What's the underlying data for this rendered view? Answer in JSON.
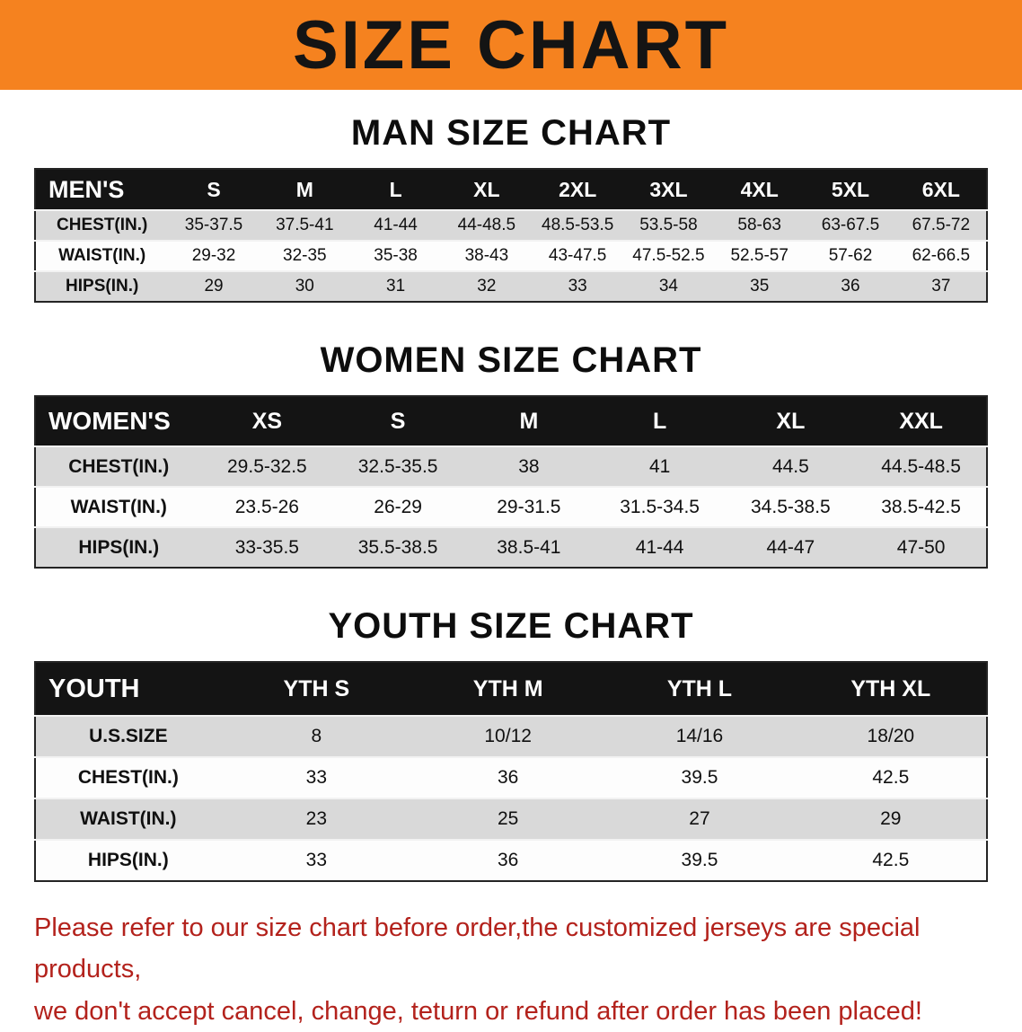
{
  "banner": {
    "title": "SIZE CHART"
  },
  "colors": {
    "banner_bg": "#f5821f",
    "table_header_bg": "#141414",
    "row_gray": "#d9d9d9",
    "row_white": "#fdfdfd",
    "footer_red": "#b3221c"
  },
  "sections": [
    {
      "title": "MAN SIZE CHART",
      "table": {
        "name": "mens-size-table",
        "header_label": "MEN'S",
        "columns": [
          "S",
          "M",
          "L",
          "XL",
          "2XL",
          "3XL",
          "4XL",
          "5XL",
          "6XL"
        ],
        "rows": [
          {
            "label": "CHEST(IN.)",
            "values": [
              "35-37.5",
              "37.5-41",
              "41-44",
              "44-48.5",
              "48.5-53.5",
              "53.5-58",
              "58-63",
              "63-67.5",
              "67.5-72"
            ]
          },
          {
            "label": "WAIST(IN.)",
            "values": [
              "29-32",
              "32-35",
              "35-38",
              "38-43",
              "43-47.5",
              "47.5-52.5",
              "52.5-57",
              "57-62",
              "62-66.5"
            ]
          },
          {
            "label": "HIPS(IN.)",
            "values": [
              "29",
              "30",
              "31",
              "32",
              "33",
              "34",
              "35",
              "36",
              "37"
            ]
          }
        ]
      }
    },
    {
      "title": "WOMEN SIZE CHART",
      "table": {
        "name": "womens-size-table",
        "header_label": "WOMEN'S",
        "columns": [
          "XS",
          "S",
          "M",
          "L",
          "XL",
          "XXL"
        ],
        "rows": [
          {
            "label": "CHEST(IN.)",
            "values": [
              "29.5-32.5",
              "32.5-35.5",
              "38",
              "41",
              "44.5",
              "44.5-48.5"
            ]
          },
          {
            "label": "WAIST(IN.)",
            "values": [
              "23.5-26",
              "26-29",
              "29-31.5",
              "31.5-34.5",
              "34.5-38.5",
              "38.5-42.5"
            ]
          },
          {
            "label": "HIPS(IN.)",
            "values": [
              "33-35.5",
              "35.5-38.5",
              "38.5-41",
              "41-44",
              "44-47",
              "47-50"
            ]
          }
        ]
      }
    },
    {
      "title": "YOUTH SIZE CHART",
      "table": {
        "name": "youth-size-table",
        "header_label": "YOUTH",
        "columns": [
          "YTH S",
          "YTH M",
          "YTH L",
          "YTH XL"
        ],
        "rows": [
          {
            "label": "U.S.SIZE",
            "values": [
              "8",
              "10/12",
              "14/16",
              "18/20"
            ]
          },
          {
            "label": "CHEST(IN.)",
            "values": [
              "33",
              "36",
              "39.5",
              "42.5"
            ]
          },
          {
            "label": "WAIST(IN.)",
            "values": [
              "23",
              "25",
              "27",
              "29"
            ]
          },
          {
            "label": "HIPS(IN.)",
            "values": [
              "33",
              "36",
              "39.5",
              "42.5"
            ]
          }
        ]
      }
    }
  ],
  "footer": {
    "line1": "Please refer to our size chart before order,the customized jerseys are special products,",
    "line2": "we don't accept cancel, change, teturn or refund after order has been placed!"
  }
}
